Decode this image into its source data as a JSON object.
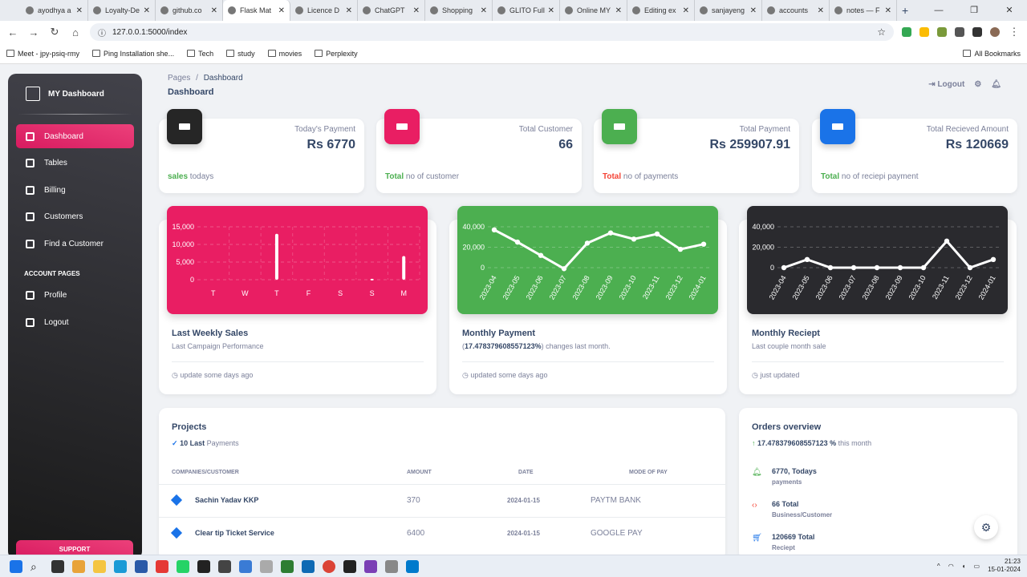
{
  "browser": {
    "tabs": [
      {
        "label": "ayodhya a",
        "active": false
      },
      {
        "label": "Loyalty-De",
        "active": false
      },
      {
        "label": "github.co",
        "active": false
      },
      {
        "label": "Flask Mat",
        "active": true
      },
      {
        "label": "Licence D",
        "active": false
      },
      {
        "label": "ChatGPT",
        "active": false
      },
      {
        "label": "Shopping",
        "active": false
      },
      {
        "label": "GLITO Full",
        "active": false
      },
      {
        "label": "Online MY",
        "active": false
      },
      {
        "label": "Editing ex",
        "active": false
      },
      {
        "label": "sanjayeng",
        "active": false
      },
      {
        "label": "accounts",
        "active": false
      },
      {
        "label": "notes — F",
        "active": false
      }
    ],
    "url": "127.0.0.1:5000/index",
    "bookmarks": [
      {
        "label": "Meet - jpy-psiq-rmy"
      },
      {
        "label": "Ping Installation she..."
      },
      {
        "label": "Tech"
      },
      {
        "label": "study"
      },
      {
        "label": "movies"
      },
      {
        "label": "Perplexity"
      }
    ],
    "all_bookmarks": "All Bookmarks"
  },
  "sidebar": {
    "brand": "MY Dashboard",
    "items": [
      {
        "label": "Dashboard",
        "active": true
      },
      {
        "label": "Tables"
      },
      {
        "label": "Billing"
      },
      {
        "label": "Customers"
      },
      {
        "label": "Find a Customer"
      }
    ],
    "section": "ACCOUNT PAGES",
    "account_items": [
      {
        "label": "Profile"
      },
      {
        "label": "Logout"
      }
    ],
    "support": "SUPPORT"
  },
  "header": {
    "crumb_root": "Pages",
    "crumb_sep": "/",
    "crumb_current": "Dashboard",
    "title": "Dashboard",
    "logout": "Logout"
  },
  "stats": [
    {
      "label": "Today's Payment",
      "value": "Rs 6770",
      "foot_strong": "sales",
      "foot_rest": " todays",
      "color": "#4caf50",
      "icon_bg": "#262626"
    },
    {
      "label": "Total Customer",
      "value": "66",
      "foot_strong": "Total",
      "foot_rest": " no of customer",
      "color": "#4caf50",
      "icon_bg": "#e91e63"
    },
    {
      "label": "Total Payment",
      "value": "Rs 259907.91",
      "foot_strong": "Total",
      "foot_rest": " no of payments",
      "color": "#f44335",
      "icon_bg": "#4caf50"
    },
    {
      "label": "Total Recieved Amount",
      "value": "Rs 120669",
      "foot_strong": "Total",
      "foot_rest": " no of reciepi payment",
      "color": "#4caf50",
      "icon_bg": "#1a73e8"
    }
  ],
  "charts": [
    {
      "title": "Last Weekly Sales",
      "subtitle": "Last Campaign Performance",
      "footer": "update some days ago",
      "bg": "#e91e63"
    },
    {
      "title": "Monthly Payment",
      "sub_open": "(",
      "sub_bold": "17.478379608557123%",
      "sub_close": ") changes last month.",
      "footer": "updated some days ago",
      "bg": "#4caf50"
    },
    {
      "title": "Monthly Reciept",
      "subtitle": "Last couple month sale",
      "footer": "just updated",
      "bg": "#2a2a2e"
    }
  ],
  "chart_data": [
    {
      "type": "bar",
      "categories": [
        "T",
        "W",
        "T",
        "F",
        "S",
        "S",
        "M"
      ],
      "values": [
        0,
        0,
        13000,
        0,
        0,
        250,
        6700
      ],
      "ylim": [
        0,
        15000
      ],
      "yticks": [
        0,
        5000,
        10000,
        15000
      ]
    },
    {
      "type": "line",
      "categories": [
        "2023-04",
        "2023-05",
        "2023-06",
        "2023-07",
        "2023-08",
        "2023-09",
        "2023-10",
        "2023-11",
        "2023-12",
        "2024-01"
      ],
      "values": [
        37000,
        25000,
        12000,
        -1000,
        24000,
        34000,
        28000,
        33000,
        18000,
        23000
      ],
      "ylim": [
        0,
        40000
      ],
      "yticks": [
        0,
        20000,
        40000
      ]
    },
    {
      "type": "line",
      "categories": [
        "2023-04",
        "2023-05",
        "2023-06",
        "2023-07",
        "2023-08",
        "2023-09",
        "2023-10",
        "2023-11",
        "2023-12",
        "2024-01"
      ],
      "values": [
        0,
        8000,
        0,
        0,
        0,
        0,
        0,
        26000,
        0,
        8000
      ],
      "ylim": [
        0,
        40000
      ],
      "yticks": [
        0,
        20000,
        40000
      ]
    }
  ],
  "projects": {
    "title": "Projects",
    "sub_bold": "10 Last",
    "sub_rest": " Payments",
    "headers": [
      "COMPANIES/CUSTOMER",
      "AMOUNT",
      "DATE",
      "MODE OF PAY"
    ],
    "rows": [
      {
        "name": "Sachin Yadav KKP",
        "amount": "370",
        "date": "2024-01-15",
        "mode": "PAYTM BANK"
      },
      {
        "name": "Clear tip Ticket Service",
        "amount": "6400",
        "date": "2024-01-15",
        "mode": "GOOGLE PAY"
      }
    ]
  },
  "orders": {
    "title": "Orders overview",
    "sub_bold": "17.478379608557123 %",
    "sub_rest": " this month",
    "items": [
      {
        "t1": "6770, Todays",
        "t2": "payments",
        "color": "#4caf50",
        "icon": "bell-icon"
      },
      {
        "t1": "66 Total",
        "t2": "Business/Customer",
        "color": "#f44335",
        "icon": "code-icon"
      },
      {
        "t1": "120669 Total",
        "t2": "Reciept",
        "color": "#1a73e8",
        "icon": "cart-icon"
      }
    ]
  },
  "taskbar": {
    "time": "21:23",
    "date": "15-01-2024"
  }
}
